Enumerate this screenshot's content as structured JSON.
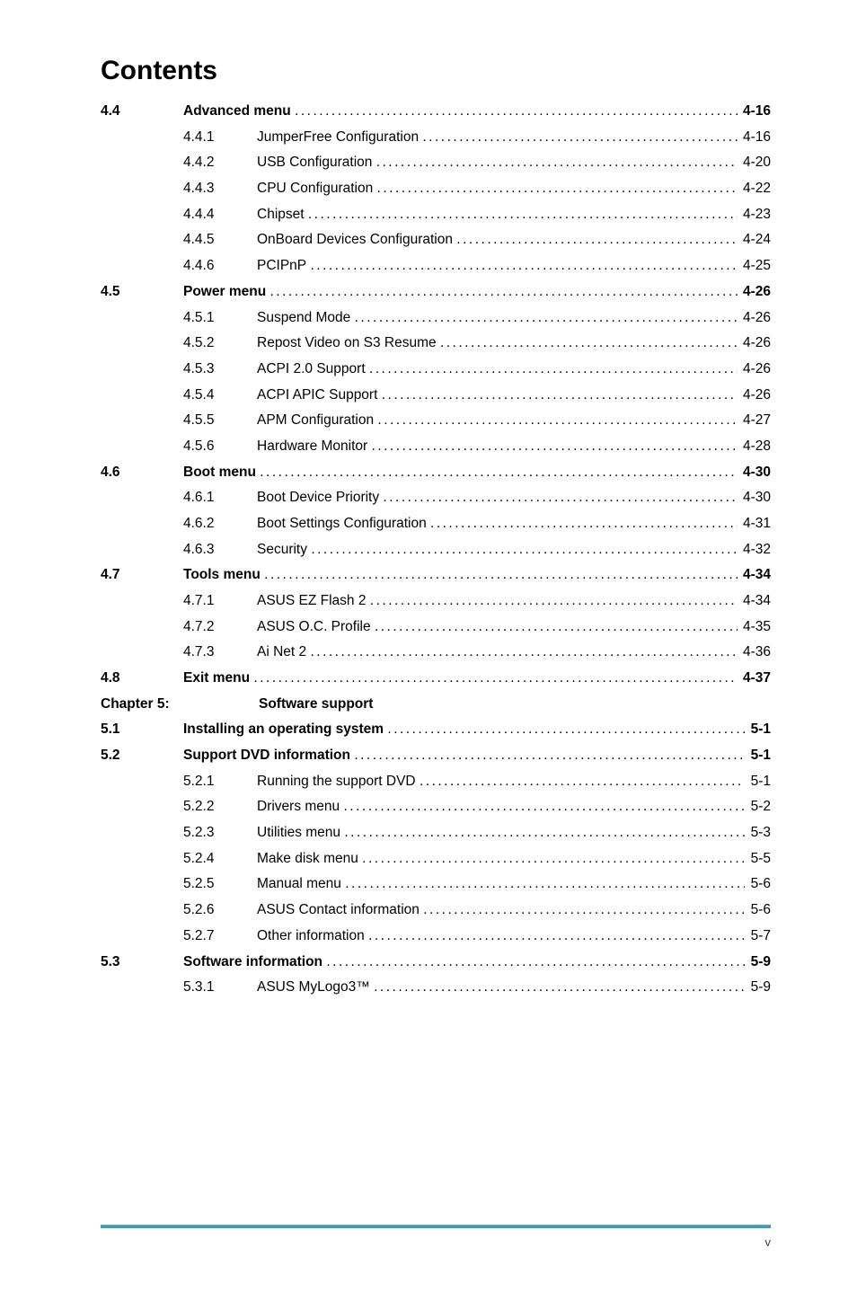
{
  "title": "Contents",
  "entries": [
    {
      "level": 1,
      "num": "4.4",
      "label": "Advanced menu",
      "page": "4-16"
    },
    {
      "level": 2,
      "num": "4.4.1",
      "label": "JumperFree Configuration",
      "page": "4-16"
    },
    {
      "level": 2,
      "num": "4.4.2",
      "label": "USB Configuration",
      "page": "4-20"
    },
    {
      "level": 2,
      "num": "4.4.3",
      "label": "CPU Configuration",
      "page": "4-22"
    },
    {
      "level": 2,
      "num": "4.4.4",
      "label": "Chipset",
      "page": "4-23"
    },
    {
      "level": 2,
      "num": "4.4.5",
      "label": "OnBoard Devices Configuration",
      "page": "4-24"
    },
    {
      "level": 2,
      "num": "4.4.6",
      "label": "PCIPnP",
      "page": "4-25"
    },
    {
      "level": 1,
      "num": "4.5",
      "label": "Power menu",
      "page": "4-26"
    },
    {
      "level": 2,
      "num": "4.5.1",
      "label": "Suspend Mode",
      "page": "4-26"
    },
    {
      "level": 2,
      "num": "4.5.2",
      "label": "Repost Video on S3 Resume",
      "page": "4-26"
    },
    {
      "level": 2,
      "num": "4.5.3",
      "label": "ACPI 2.0 Support",
      "page": "4-26"
    },
    {
      "level": 2,
      "num": "4.5.4",
      "label": "ACPI APIC Support",
      "page": "4-26"
    },
    {
      "level": 2,
      "num": "4.5.5",
      "label": "APM Configuration",
      "page": "4-27"
    },
    {
      "level": 2,
      "num": "4.5.6",
      "label": "Hardware Monitor",
      "page": "4-28"
    },
    {
      "level": 1,
      "num": "4.6",
      "label": "Boot menu",
      "page": "4-30"
    },
    {
      "level": 2,
      "num": "4.6.1",
      "label": "Boot Device Priority",
      "page": "4-30"
    },
    {
      "level": 2,
      "num": "4.6.2",
      "label": "Boot Settings Configuration",
      "page": "4-31"
    },
    {
      "level": 2,
      "num": "4.6.3",
      "label": "Security",
      "page": "4-32"
    },
    {
      "level": 1,
      "num": "4.7",
      "label": "Tools menu",
      "page": "4-34"
    },
    {
      "level": 2,
      "num": "4.7.1",
      "label": "ASUS EZ Flash 2",
      "page": "4-34"
    },
    {
      "level": 2,
      "num": "4.7.2",
      "label": "ASUS O.C. Profile",
      "page": "4-35"
    },
    {
      "level": 2,
      "num": "4.7.3",
      "label": "Ai Net 2",
      "page": "4-36"
    },
    {
      "level": 1,
      "num": "4.8",
      "label": "Exit menu",
      "page": "4-37"
    },
    {
      "level": "chapter",
      "num": "Chapter 5:",
      "label": "Software support",
      "page": ""
    },
    {
      "level": 1,
      "num": "5.1",
      "label": "Installing an operating system",
      "page": "5-1"
    },
    {
      "level": 1,
      "num": "5.2",
      "label": "Support DVD information",
      "page": "5-1"
    },
    {
      "level": 2,
      "num": "5.2.1",
      "label": "Running the support DVD",
      "page": "5-1"
    },
    {
      "level": 2,
      "num": "5.2.2",
      "label": "Drivers menu",
      "page": "5-2"
    },
    {
      "level": 2,
      "num": "5.2.3",
      "label": "Utilities menu",
      "page": "5-3"
    },
    {
      "level": 2,
      "num": "5.2.4",
      "label": "Make disk menu",
      "page": "5-5"
    },
    {
      "level": 2,
      "num": "5.2.5",
      "label": "Manual menu",
      "page": "5-6"
    },
    {
      "level": 2,
      "num": "5.2.6",
      "label": "ASUS Contact information",
      "page": "5-6"
    },
    {
      "level": 2,
      "num": "5.2.7",
      "label": "Other information",
      "page": "5-7"
    },
    {
      "level": 1,
      "num": "5.3",
      "label": "Software information",
      "page": "5-9"
    },
    {
      "level": 2,
      "num": "5.3.1",
      "label": "ASUS MyLogo3™",
      "page": "5-9"
    }
  ],
  "pageNumber": "v",
  "style": {
    "title_fontsize": 30,
    "body_fontsize": 15.5,
    "footer_fontsize": 13,
    "text_color": "#000000",
    "footer_text_color": "#444444",
    "rule_top_color": "#999999",
    "rule_bottom_color": "#2aa1d3",
    "background_color": "#ffffff",
    "font_family": "Arial, Helvetica, sans-serif"
  }
}
